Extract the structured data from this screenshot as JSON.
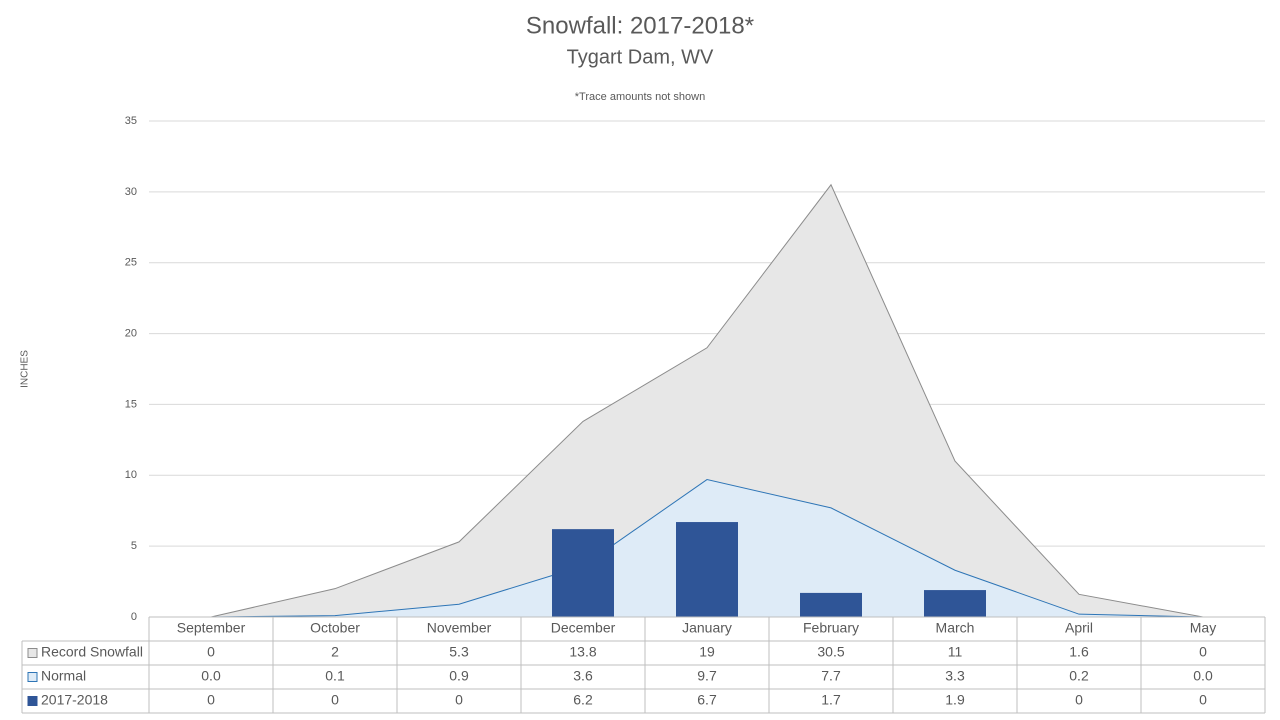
{
  "chart_data": {
    "type": "area",
    "title": "Snowfall: 2017-2018*",
    "subtitle": "Tygart Dam, WV",
    "annotation": "*Trace amounts not shown",
    "y_label": "INCHES",
    "categories": [
      "September",
      "October",
      "November",
      "December",
      "January",
      "February",
      "March",
      "April",
      "May"
    ],
    "series": [
      {
        "name": "Record Snowfall",
        "type": "area",
        "color": "#e7e7e7",
        "line_color": "#8c8c8c",
        "values": [
          0,
          2,
          5.3,
          13.8,
          19,
          30.5,
          11,
          1.6,
          0
        ]
      },
      {
        "name": "Normal",
        "type": "area",
        "color": "#deebf7",
        "line_color": "#2e75b6",
        "values": [
          0,
          0.1,
          0.9,
          3.6,
          9.7,
          7.7,
          3.3,
          0.2,
          0
        ],
        "value_labels": [
          "0.0",
          "0.1",
          "0.9",
          "3.6",
          "9.7",
          "7.7",
          "3.3",
          "0.2",
          "0.0"
        ]
      },
      {
        "name": "2017-2018",
        "type": "bar",
        "color": "#2f5597",
        "values": [
          0,
          0,
          0,
          6.2,
          6.7,
          1.7,
          1.9,
          0,
          0
        ]
      }
    ],
    "ylim": [
      0,
      35
    ],
    "yticks": [
      0,
      5,
      10,
      15,
      20,
      25,
      30,
      35
    ],
    "grid": true
  }
}
